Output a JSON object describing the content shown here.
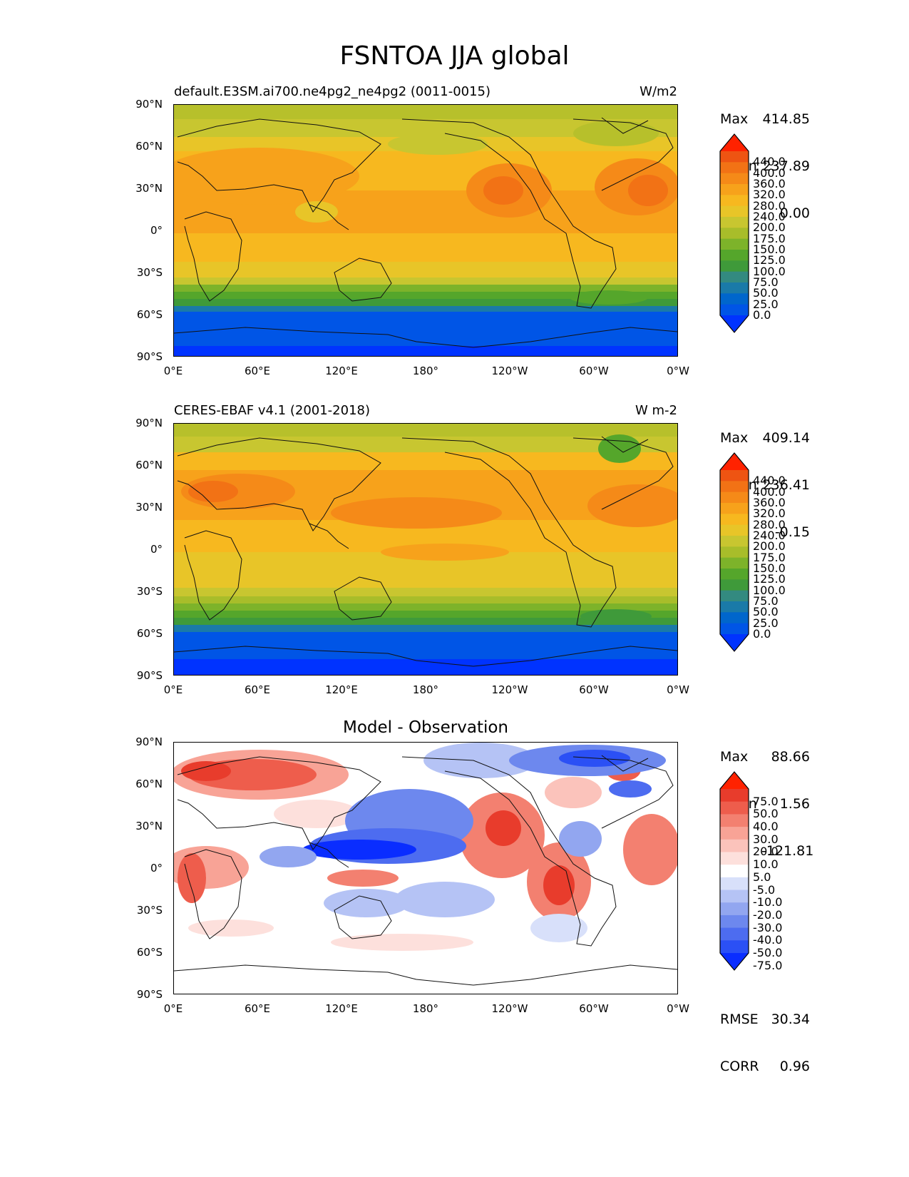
{
  "figure": {
    "title": "FSNTOA JJA global"
  },
  "chart_data": [
    {
      "type": "heatmap",
      "title_left": "default.E3SM.ai700.ne4pg2_ne4pg2 (0011-0015)",
      "title_right": "W/m2",
      "x_ticks": [
        "0°E",
        "60°E",
        "120°E",
        "180°",
        "120°W",
        "60°W",
        "0°W"
      ],
      "y_ticks": [
        "90°N",
        "60°N",
        "30°N",
        "0°",
        "30°S",
        "60°S",
        "90°S"
      ],
      "stats": {
        "max_label": "Max",
        "max": "414.85",
        "mean_label": "Mean",
        "mean": "237.89",
        "min_label": "Min",
        "min": "0.00"
      },
      "colorbar_ticks": [
        "440.0",
        "400.0",
        "360.0",
        "320.0",
        "280.0",
        "240.0",
        "200.0",
        "175.0",
        "150.0",
        "125.0",
        "100.0",
        "75.0",
        "50.0",
        "25.0",
        "0.0"
      ],
      "colors": [
        "#0033ff",
        "#0055e6",
        "#0066cc",
        "#1a7aa8",
        "#338a80",
        "#3f9a3a",
        "#55a62b",
        "#7db32a",
        "#a8bd2a",
        "#c8c630",
        "#e8c528",
        "#f7b81f",
        "#f7a21b",
        "#f58a18",
        "#f27215",
        "#ee5412",
        "#ff2200"
      ]
    },
    {
      "type": "heatmap",
      "title_left": "CERES-EBAF v4.1 (2001-2018)",
      "title_right": "W m-2",
      "x_ticks": [
        "0°E",
        "60°E",
        "120°E",
        "180°",
        "120°W",
        "60°W",
        "0°W"
      ],
      "y_ticks": [
        "90°N",
        "60°N",
        "30°N",
        "0°",
        "30°S",
        "60°S",
        "90°S"
      ],
      "stats": {
        "max_label": "Max",
        "max": "409.14",
        "mean_label": "Mean",
        "mean": "236.41",
        "min_label": "Min",
        "min": "-0.15"
      },
      "colorbar_ticks": [
        "440.0",
        "400.0",
        "360.0",
        "320.0",
        "280.0",
        "240.0",
        "200.0",
        "175.0",
        "150.0",
        "125.0",
        "100.0",
        "75.0",
        "50.0",
        "25.0",
        "0.0"
      ]
    },
    {
      "type": "heatmap",
      "title_center": "Model - Observation",
      "x_ticks": [
        "0°E",
        "60°E",
        "120°E",
        "180°",
        "120°W",
        "60°W",
        "0°W"
      ],
      "y_ticks": [
        "90°N",
        "60°N",
        "30°N",
        "0°",
        "30°S",
        "60°S",
        "90°S"
      ],
      "stats": {
        "max_label": "Max",
        "max": "88.66",
        "mean_label": "Mean",
        "mean": "1.56",
        "min_label": "Min",
        "min": "-121.81"
      },
      "colorbar_ticks": [
        "75.0",
        "50.0",
        "40.0",
        "30.0",
        "20.0",
        "10.0",
        "5.0",
        "-5.0",
        "-10.0",
        "-20.0",
        "-30.0",
        "-40.0",
        "-50.0",
        "-75.0"
      ],
      "metrics": {
        "rmse_label": "RMSE",
        "rmse": "30.34",
        "corr_label": "CORR",
        "corr": "0.96"
      },
      "colors": [
        "#0a2dff",
        "#2b50f5",
        "#4d6cf0",
        "#6d88ee",
        "#92a6f0",
        "#b5c3f5",
        "#d8e0fa",
        "#ffffff",
        "#fde0dc",
        "#fbc3bb",
        "#f8a396",
        "#f38070",
        "#ee5d4c",
        "#e83c2c",
        "#ff2200"
      ]
    }
  ]
}
